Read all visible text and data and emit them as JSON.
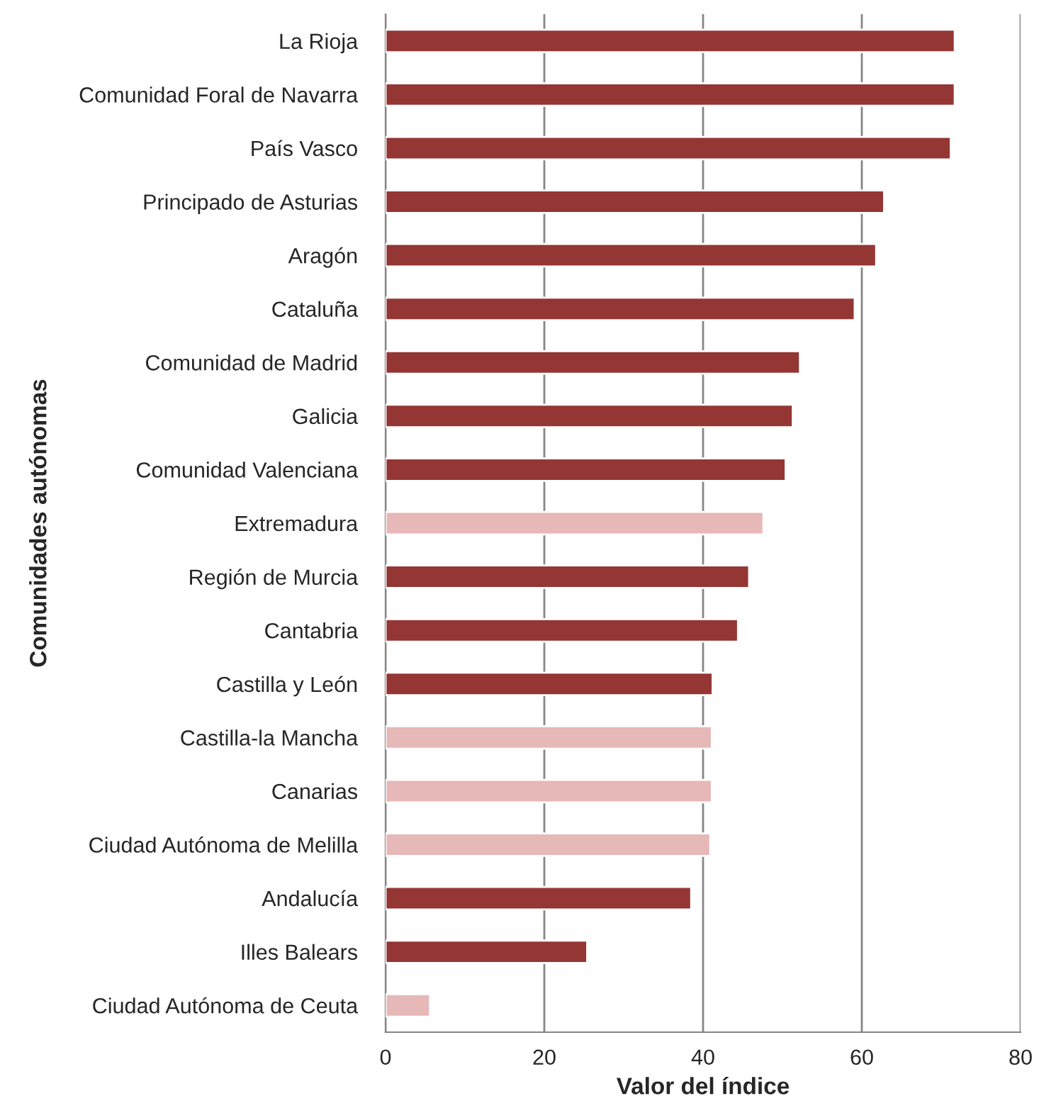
{
  "chart_data": {
    "type": "bar",
    "orientation": "horizontal",
    "xlabel": "Valor del índice",
    "ylabel": "Comunidades autónomas",
    "categories": [
      "La Rioja",
      "Comunidad Foral de Navarra",
      "País Vasco",
      "Principado de Asturias",
      "Aragón",
      "Cataluña",
      "Comunidad de Madrid",
      "Galicia",
      "Comunidad Valenciana",
      "Extremadura",
      "Región de Murcia",
      "Cantabria",
      "Castilla y León",
      "Castilla-la Mancha",
      "Canarias",
      "Ciudad Autónoma de Melilla",
      "Andalucía",
      "Illes Balears",
      "Ciudad Autónoma de Ceuta"
    ],
    "values": [
      71.7,
      71.7,
      71.2,
      62.8,
      61.8,
      59.1,
      52.2,
      51.3,
      50.4,
      47.6,
      45.8,
      44.4,
      41.2,
      41.1,
      41.1,
      40.9,
      38.5,
      25.4,
      5.6
    ],
    "colors": [
      "#943634",
      "#943634",
      "#943634",
      "#943634",
      "#943634",
      "#943634",
      "#943634",
      "#943634",
      "#943634",
      "#e6b8b7",
      "#943634",
      "#943634",
      "#943634",
      "#e6b8b7",
      "#e6b8b7",
      "#e6b8b7",
      "#943634",
      "#943634",
      "#e6b8b7"
    ],
    "xlim": [
      0,
      80
    ],
    "xticks": [
      0,
      20,
      40,
      60,
      80
    ],
    "grid": "x"
  }
}
